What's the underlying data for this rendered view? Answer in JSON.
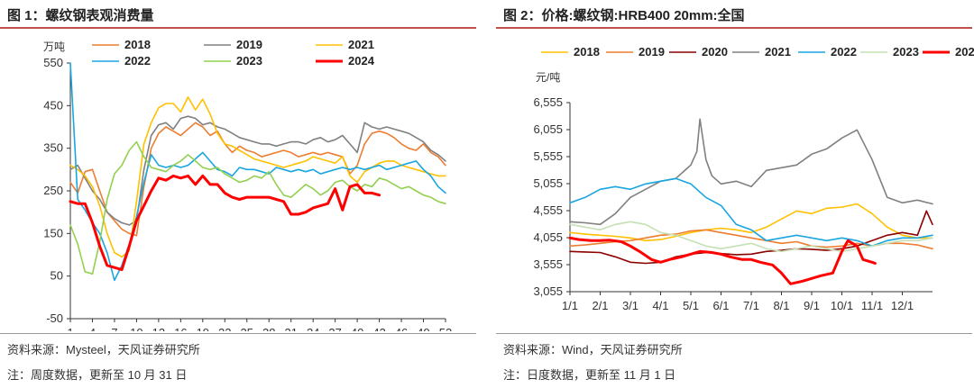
{
  "left": {
    "title": "图 1：螺纹钢表观消费量",
    "source": "资料来源：Mysteel，天风证券研究所",
    "note": "注：周度数据，更新至 10 月 31 日"
  },
  "right": {
    "title": "图 2：价格:螺纹钢:HRB400 20mm:全国",
    "source": "资料来源：Wind，天风证券研究所",
    "note": "注：日度数据，更新至 11 月 1 日"
  },
  "chart_data": [
    {
      "type": "line",
      "ylabel": "万吨",
      "ylim": [
        -50,
        550
      ],
      "yticks": [
        -50,
        50,
        150,
        250,
        350,
        450,
        550
      ],
      "xlim": [
        1,
        52
      ],
      "xticks": [
        1,
        4,
        7,
        10,
        13,
        16,
        19,
        22,
        25,
        28,
        31,
        34,
        37,
        40,
        43,
        46,
        49,
        52
      ],
      "legend_position": "top",
      "series": [
        {
          "name": "2018",
          "color": "#ED7D31",
          "width": 1.6,
          "x": [
            1,
            2,
            3,
            4,
            5,
            6,
            7,
            8,
            9,
            10,
            11,
            12,
            13,
            14,
            15,
            16,
            17,
            18,
            19,
            20,
            21,
            22,
            23,
            24,
            25,
            26,
            27,
            28,
            29,
            30,
            31,
            32,
            33,
            34,
            35,
            36,
            37,
            38,
            39,
            40,
            41,
            42,
            43,
            44,
            45,
            46,
            47,
            48,
            49,
            50,
            51,
            52
          ],
          "values": [
            270,
            245,
            295,
            300,
            250,
            200,
            180,
            160,
            150,
            145,
            260,
            350,
            385,
            400,
            390,
            380,
            395,
            410,
            400,
            380,
            390,
            360,
            340,
            355,
            345,
            340,
            330,
            335,
            340,
            345,
            340,
            330,
            335,
            340,
            335,
            340,
            335,
            330,
            290,
            310,
            360,
            385,
            390,
            385,
            375,
            360,
            350,
            345,
            360,
            340,
            330,
            310
          ]
        },
        {
          "name": "2019",
          "color": "#808080",
          "width": 1.6,
          "x": [
            1,
            2,
            3,
            4,
            5,
            6,
            7,
            8,
            9,
            10,
            11,
            12,
            13,
            14,
            15,
            16,
            17,
            18,
            19,
            20,
            21,
            22,
            23,
            24,
            25,
            26,
            27,
            28,
            29,
            30,
            31,
            32,
            33,
            34,
            35,
            36,
            37,
            38,
            39,
            40,
            41,
            42,
            43,
            44,
            45,
            46,
            47,
            48,
            49,
            50,
            51,
            52
          ],
          "values": [
            300,
            310,
            280,
            250,
            230,
            200,
            185,
            175,
            170,
            180,
            300,
            380,
            405,
            410,
            395,
            420,
            425,
            420,
            405,
            410,
            400,
            395,
            385,
            375,
            370,
            365,
            360,
            360,
            355,
            360,
            365,
            365,
            360,
            370,
            375,
            365,
            370,
            380,
            360,
            340,
            410,
            400,
            395,
            400,
            395,
            390,
            385,
            375,
            365,
            345,
            335,
            320
          ]
        },
        {
          "name": "2021",
          "color": "#FFC000",
          "width": 1.6,
          "x": [
            1,
            2,
            3,
            4,
            5,
            6,
            7,
            8,
            9,
            10,
            11,
            12,
            13,
            14,
            15,
            16,
            17,
            18,
            19,
            20,
            21,
            22,
            23,
            24,
            25,
            26,
            27,
            28,
            29,
            30,
            31,
            32,
            33,
            34,
            35,
            36,
            37,
            38,
            39,
            40,
            41,
            42,
            43,
            44,
            45,
            46,
            47,
            48,
            49,
            50,
            51,
            52
          ],
          "values": [
            310,
            300,
            285,
            260,
            215,
            150,
            105,
            95,
            110,
            225,
            360,
            410,
            445,
            455,
            455,
            435,
            470,
            440,
            465,
            430,
            385,
            360,
            355,
            345,
            335,
            325,
            320,
            315,
            310,
            305,
            310,
            315,
            320,
            330,
            325,
            320,
            315,
            330,
            285,
            270,
            295,
            305,
            315,
            320,
            320,
            310,
            305,
            300,
            295,
            290,
            285,
            285
          ]
        },
        {
          "name": "2022",
          "color": "#19A6E0",
          "width": 1.6,
          "x": [
            1,
            2,
            3,
            4,
            5,
            6,
            7,
            8,
            9,
            10,
            11,
            12,
            13,
            14,
            15,
            16,
            17,
            18,
            19,
            20,
            21,
            22,
            23,
            24,
            25,
            26,
            27,
            28,
            29,
            30,
            31,
            32,
            33,
            34,
            35,
            36,
            37,
            38,
            39,
            40,
            41,
            42,
            43,
            44,
            45,
            46,
            47,
            48,
            49,
            50,
            51,
            52
          ],
          "values": [
            550,
            230,
            205,
            175,
            150,
            105,
            40,
            75,
            125,
            190,
            270,
            335,
            310,
            305,
            310,
            305,
            310,
            325,
            340,
            320,
            300,
            295,
            285,
            305,
            300,
            300,
            295,
            290,
            305,
            300,
            295,
            300,
            295,
            300,
            290,
            295,
            300,
            305,
            300,
            305,
            300,
            305,
            310,
            300,
            305,
            310,
            315,
            320,
            300,
            285,
            260,
            245
          ]
        },
        {
          "name": "2023",
          "color": "#92D050",
          "width": 1.6,
          "x": [
            1,
            2,
            3,
            4,
            5,
            6,
            7,
            8,
            9,
            10,
            11,
            12,
            13,
            14,
            15,
            16,
            17,
            18,
            19,
            20,
            21,
            22,
            23,
            24,
            25,
            26,
            27,
            28,
            29,
            30,
            31,
            32,
            33,
            34,
            35,
            36,
            37,
            38,
            39,
            40,
            41,
            42,
            43,
            44,
            45,
            46,
            47,
            48,
            49,
            50,
            51,
            52
          ],
          "values": [
            170,
            125,
            60,
            55,
            130,
            230,
            290,
            310,
            345,
            365,
            330,
            305,
            300,
            295,
            310,
            320,
            335,
            320,
            305,
            300,
            305,
            290,
            280,
            270,
            275,
            285,
            280,
            295,
            265,
            240,
            235,
            250,
            265,
            255,
            240,
            250,
            270,
            275,
            260,
            250,
            265,
            260,
            280,
            275,
            265,
            255,
            260,
            250,
            240,
            235,
            225,
            220
          ]
        },
        {
          "name": "2024",
          "color": "#FF0000",
          "width": 3.0,
          "x": [
            1,
            2,
            3,
            4,
            5,
            6,
            7,
            8,
            9,
            10,
            11,
            12,
            13,
            14,
            15,
            16,
            17,
            18,
            19,
            20,
            21,
            22,
            23,
            24,
            25,
            26,
            27,
            28,
            29,
            30,
            31,
            32,
            33,
            34,
            35,
            36,
            37,
            38,
            39,
            40,
            41,
            42,
            43
          ],
          "values": [
            225,
            220,
            220,
            175,
            120,
            75,
            70,
            65,
            120,
            180,
            215,
            250,
            280,
            275,
            285,
            280,
            285,
            265,
            285,
            265,
            265,
            245,
            235,
            230,
            235,
            235,
            235,
            235,
            230,
            225,
            195,
            195,
            200,
            210,
            215,
            220,
            255,
            205,
            260,
            265,
            245,
            245,
            240
          ]
        }
      ]
    },
    {
      "type": "line",
      "ylabel": "元/吨",
      "ylim": [
        3055,
        6555
      ],
      "yticks": [
        3055,
        3555,
        4055,
        4555,
        5055,
        5555,
        6055,
        6555
      ],
      "xlim": [
        1,
        13
      ],
      "xticks": [
        "1/1",
        "2/1",
        "3/1",
        "4/1",
        "5/1",
        "6/1",
        "7/1",
        "8/1",
        "9/1",
        "10/1",
        "11/1",
        "12/1"
      ],
      "legend_position": "top",
      "series": [
        {
          "name": "2018",
          "color": "#FFC000",
          "width": 1.6,
          "x": [
            1,
            1.5,
            2,
            2.5,
            3,
            3.5,
            4,
            4.5,
            5,
            5.5,
            6,
            6.5,
            7,
            7.5,
            8,
            8.5,
            9,
            9.5,
            10,
            10.5,
            11,
            11.5,
            12,
            12.5,
            13
          ],
          "values": [
            4150,
            4120,
            4100,
            4080,
            4050,
            4000,
            4020,
            4080,
            4150,
            4200,
            4230,
            4200,
            4150,
            4250,
            4400,
            4550,
            4500,
            4600,
            4620,
            4680,
            4500,
            4250,
            4100,
            4050,
            4050
          ]
        },
        {
          "name": "2019",
          "color": "#ED7D31",
          "width": 1.6,
          "x": [
            1,
            1.5,
            2,
            2.5,
            3,
            3.5,
            4,
            4.5,
            5,
            5.5,
            6,
            6.5,
            7,
            7.5,
            8,
            8.5,
            9,
            9.5,
            10,
            10.5,
            11,
            11.5,
            12,
            12.5,
            13
          ],
          "values": [
            3900,
            3920,
            3950,
            3980,
            4000,
            4050,
            4100,
            4120,
            4180,
            4200,
            4150,
            4100,
            4050,
            4000,
            3950,
            3980,
            3900,
            3880,
            3900,
            3950,
            3900,
            3950,
            3950,
            3920,
            3850
          ]
        },
        {
          "name": "2020",
          "color": "#8B0000",
          "width": 1.6,
          "x": [
            1,
            1.5,
            2,
            2.5,
            3,
            3.5,
            4,
            4.5,
            5,
            5.5,
            6,
            6.5,
            7,
            7.5,
            8,
            8.5,
            9,
            9.5,
            10,
            10.5,
            11,
            11.5,
            12,
            12.5,
            12.8,
            13
          ],
          "values": [
            3800,
            3790,
            3780,
            3700,
            3600,
            3580,
            3600,
            3700,
            3750,
            3780,
            3760,
            3740,
            3750,
            3800,
            3820,
            3850,
            3840,
            3820,
            3850,
            3900,
            4000,
            4100,
            4150,
            4100,
            4550,
            4300
          ]
        },
        {
          "name": "2021",
          "color": "#808080",
          "width": 1.6,
          "x": [
            1,
            1.5,
            2,
            2.5,
            3,
            3.5,
            4,
            4.5,
            5,
            5.2,
            5.3,
            5.5,
            5.7,
            6,
            6.5,
            7,
            7.5,
            8,
            8.5,
            9,
            9.5,
            10,
            10.5,
            11,
            11.5,
            12,
            12.5,
            13
          ],
          "values": [
            4350,
            4330,
            4300,
            4500,
            4800,
            4950,
            5100,
            5150,
            5400,
            5650,
            6250,
            5500,
            5200,
            5050,
            5100,
            5000,
            5300,
            5350,
            5400,
            5600,
            5700,
            5900,
            6050,
            5500,
            4800,
            4700,
            4750,
            4680
          ]
        },
        {
          "name": "2022",
          "color": "#19A6E0",
          "width": 1.6,
          "x": [
            1,
            1.5,
            2,
            2.5,
            3,
            3.5,
            4,
            4.5,
            5,
            5.5,
            6,
            6.5,
            7,
            7.5,
            8,
            8.5,
            9,
            9.5,
            10,
            10.5,
            11,
            11.5,
            12,
            12.5,
            13
          ],
          "values": [
            4700,
            4800,
            4950,
            5000,
            4950,
            5050,
            5100,
            5150,
            5050,
            4800,
            4650,
            4300,
            4200,
            4000,
            4050,
            4100,
            4050,
            4000,
            4050,
            4000,
            3900,
            4000,
            4050,
            4050,
            4100
          ]
        },
        {
          "name": "2023",
          "color": "#C5E0B4",
          "width": 1.6,
          "x": [
            1,
            1.5,
            2,
            2.5,
            3,
            3.5,
            4,
            4.5,
            5,
            5.5,
            6,
            6.5,
            7,
            7.5,
            8,
            8.5,
            9,
            9.5,
            10,
            10.5,
            11,
            11.5,
            12,
            12.5,
            13
          ],
          "values": [
            4300,
            4250,
            4200,
            4300,
            4350,
            4300,
            4150,
            4100,
            4000,
            3900,
            3850,
            3900,
            3950,
            3850,
            3800,
            3850,
            3900,
            3850,
            3800,
            3850,
            3900,
            3950,
            4000,
            4000,
            4050
          ]
        },
        {
          "name": "2024",
          "color": "#FF0000",
          "width": 3.0,
          "x": [
            1,
            1.3,
            1.7,
            2,
            2.3,
            2.7,
            3,
            3.3,
            3.7,
            4,
            4.3,
            4.7,
            5,
            5.3,
            5.7,
            6,
            6.3,
            6.7,
            7,
            7.3,
            7.7,
            8,
            8.3,
            8.7,
            9,
            9.3,
            9.7,
            10,
            10.2,
            10.5,
            10.7,
            11,
            11.1
          ],
          "values": [
            4050,
            4020,
            4000,
            4000,
            4010,
            3980,
            3900,
            3800,
            3650,
            3600,
            3650,
            3700,
            3750,
            3800,
            3780,
            3750,
            3700,
            3650,
            3650,
            3600,
            3550,
            3400,
            3200,
            3250,
            3300,
            3350,
            3400,
            3800,
            4000,
            3900,
            3650,
            3600,
            3580
          ]
        }
      ]
    }
  ]
}
